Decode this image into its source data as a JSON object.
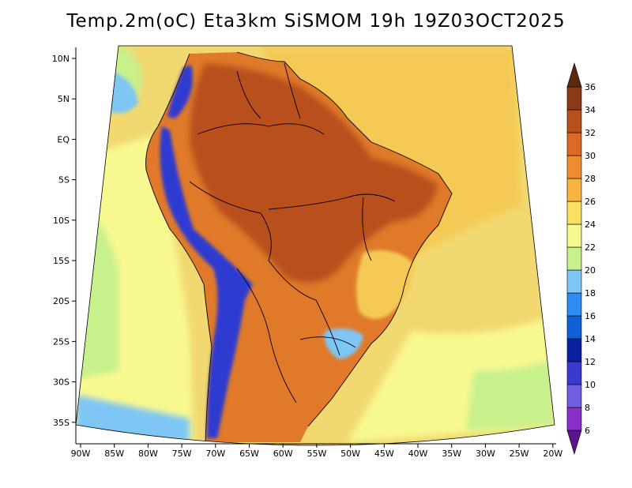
{
  "title": "Temp.2m(oC) Eta3km SiSMOM 19h 19Z03OCT2025",
  "variable": "Temp.2m(oC)",
  "model": "Eta3km SiSMOM",
  "forecast_hour": "19h",
  "valid_time": "19Z03OCT2025",
  "lat_ticks": [
    "10N",
    "5N",
    "EQ",
    "5S",
    "10S",
    "15S",
    "20S",
    "25S",
    "30S",
    "35S"
  ],
  "lon_ticks": [
    "90W",
    "85W",
    "80W",
    "75W",
    "70W",
    "65W",
    "60W",
    "55W",
    "50W",
    "45W",
    "40W",
    "35W",
    "30W",
    "25W",
    "20W"
  ],
  "colorbar": {
    "levels": [
      "6",
      "8",
      "10",
      "12",
      "14",
      "16",
      "18",
      "20",
      "22",
      "24",
      "26",
      "28",
      "30",
      "32",
      "34",
      "36"
    ],
    "colors": [
      "#5a1490",
      "#8c2fc8",
      "#7060e0",
      "#3a3ad0",
      "#0a20a0",
      "#1060d8",
      "#2f8cf0",
      "#7ec6f4",
      "#c8f08c",
      "#f8f890",
      "#f8e060",
      "#f8b440",
      "#ef8c30",
      "#dc6a26",
      "#b8501e",
      "#8a3a16",
      "#5a2810"
    ]
  },
  "map_colors": {
    "ocean_far": "#f2d870",
    "ocean_warm": "#f4ca55",
    "ocean_cool": "#f8f890",
    "ocean_south": "#c8f08c",
    "pacific_cold": "#7ec6f4",
    "land_hot": "#e07a2a",
    "land_very_hot": "#b8501e",
    "andes_cold": "#2f3ad0",
    "border": "#000000"
  }
}
